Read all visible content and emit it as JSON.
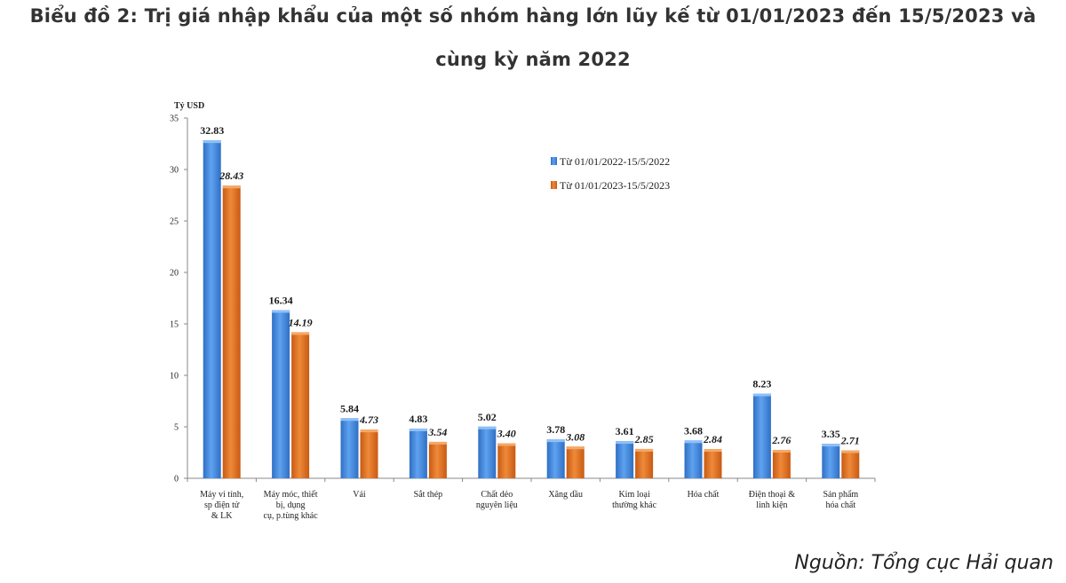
{
  "title_line1": "Biểu đồ 2: Trị giá nhập khẩu của một số nhóm hàng lớn lũy kế từ 01/01/2023 đến 15/5/2023 và",
  "title_line2": "cùng kỳ năm 2022",
  "source": "Nguồn: Tổng cục Hải quan",
  "colors": {
    "series_2022": "#4a8ee0",
    "series_2023": "#e0731f",
    "axis": "#888888"
  },
  "chart_data": {
    "type": "bar",
    "ylabel": "Tỷ USD",
    "ylim": [
      0,
      35
    ],
    "yticks": [
      0,
      5,
      10,
      15,
      20,
      25,
      30,
      35
    ],
    "grid": false,
    "legend_position": "top-right",
    "categories": [
      [
        "Máy vi tính,",
        "sp điện tử",
        "& LK"
      ],
      [
        "Máy móc, thiết",
        "bị, dụng",
        "cụ, p.tùng khác"
      ],
      [
        "Vải"
      ],
      [
        "Sắt thép"
      ],
      [
        "Chất dẻo",
        "nguyên liệu"
      ],
      [
        "Xăng dầu"
      ],
      [
        "Kim loại",
        "thường khác"
      ],
      [
        "Hóa chất"
      ],
      [
        "Điện thoại &",
        "linh kiện"
      ],
      [
        "Sản phẩm",
        "hóa chất"
      ]
    ],
    "series": [
      {
        "name": "Từ 01/01/2022-15/5/2022",
        "values": [
          32.83,
          16.34,
          5.84,
          4.83,
          5.02,
          3.78,
          3.61,
          3.68,
          8.23,
          3.35
        ],
        "labels": [
          "32.83",
          "16.34",
          "5.84",
          "4.83",
          "5.02",
          "3.78",
          "3.61",
          "3.68",
          "8.23",
          "3.35"
        ]
      },
      {
        "name": "Từ 01/01/2023-15/5/2023",
        "values": [
          28.43,
          14.19,
          4.73,
          3.54,
          3.4,
          3.08,
          2.85,
          2.84,
          2.76,
          2.71
        ],
        "labels": [
          "28.43",
          "14.19",
          "4.73",
          "3.54",
          "3.40",
          "3.08",
          "2.85",
          "2.84",
          "2.76",
          "2.71"
        ]
      }
    ]
  }
}
